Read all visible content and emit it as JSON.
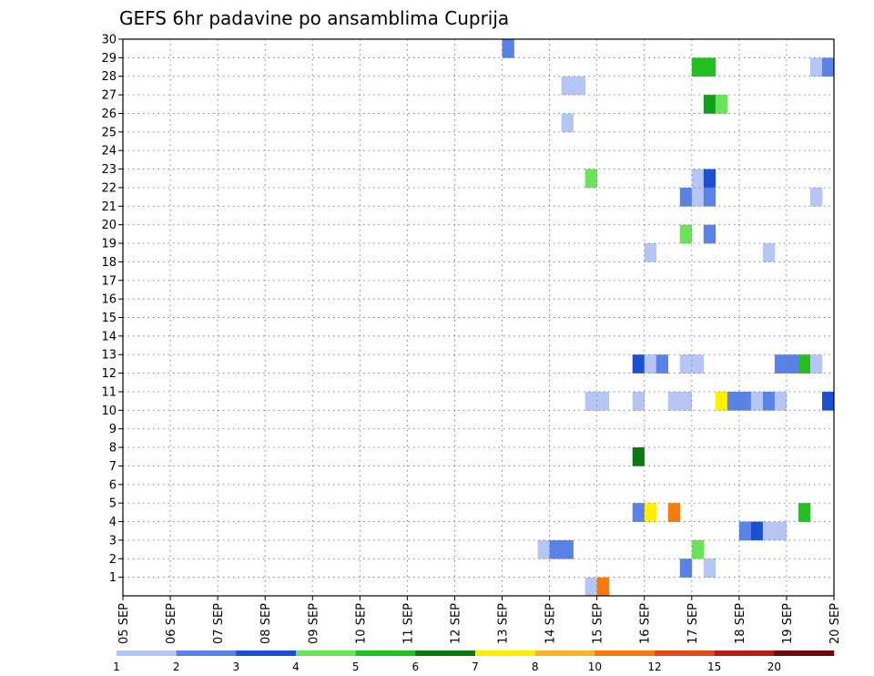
{
  "chart_data": {
    "type": "heatmap",
    "title": "GEFS 6hr padavine po ansamblima Cuprija",
    "xlabel": "",
    "ylabel": "",
    "x_ticks": [
      "05 SEP",
      "06 SEP",
      "07 SEP",
      "08 SEP",
      "09 SEP",
      "10 SEP",
      "11 SEP",
      "12 SEP",
      "13 SEP",
      "14 SEP",
      "15 SEP",
      "16 SEP",
      "17 SEP",
      "18 SEP",
      "19 SEP",
      "20 SEP"
    ],
    "y_ticks": [
      "1",
      "2",
      "3",
      "4",
      "5",
      "6",
      "7",
      "8",
      "9",
      "10",
      "11",
      "12",
      "13",
      "14",
      "15",
      "16",
      "17",
      "18",
      "19",
      "20",
      "21",
      "22",
      "23",
      "24",
      "25",
      "26",
      "27",
      "28",
      "29",
      "30"
    ],
    "grid": true,
    "time_unit": "6-hour step after 05 SEP 00Z",
    "colorbar": {
      "ticks": [
        "1",
        "2",
        "3",
        "4",
        "5",
        "6",
        "7",
        "8",
        "10",
        "12",
        "15",
        "20"
      ],
      "colors": [
        "#b5c6f5",
        "#5a82e6",
        "#1a4fd6",
        "#6ae35a",
        "#22c020",
        "#0a7a10",
        "#fff000",
        "#ffb428",
        "#f57a10",
        "#e34a18",
        "#b41e14",
        "#6e0a0a"
      ]
    },
    "cells": [
      {
        "t": 32,
        "member": 29,
        "color": "#5a82e6"
      },
      {
        "t": 37,
        "member": 27,
        "color": "#b5c6f5"
      },
      {
        "t": 38,
        "member": 27,
        "color": "#b5c6f5"
      },
      {
        "t": 37,
        "member": 25,
        "color": "#b5c6f5"
      },
      {
        "t": 39,
        "member": 22,
        "color": "#6ae35a"
      },
      {
        "t": 48,
        "member": 28,
        "color": "#22c020"
      },
      {
        "t": 49,
        "member": 28,
        "color": "#22c020"
      },
      {
        "t": 49,
        "member": 26,
        "color": "#0fa01a"
      },
      {
        "t": 50,
        "member": 26,
        "color": "#6ae35a"
      },
      {
        "t": 58,
        "member": 28,
        "color": "#b5c6f5"
      },
      {
        "t": 59,
        "member": 28,
        "color": "#5a82e6"
      },
      {
        "t": 48,
        "member": 22,
        "color": "#b5c6f5"
      },
      {
        "t": 49,
        "member": 22,
        "color": "#1a4fd6"
      },
      {
        "t": 47,
        "member": 21,
        "color": "#5a82e6"
      },
      {
        "t": 48,
        "member": 21,
        "color": "#b5c6f5"
      },
      {
        "t": 49,
        "member": 21,
        "color": "#5a82e6"
      },
      {
        "t": 58,
        "member": 21,
        "color": "#b5c6f5"
      },
      {
        "t": 47,
        "member": 19,
        "color": "#6ae35a"
      },
      {
        "t": 49,
        "member": 19,
        "color": "#5a82e6"
      },
      {
        "t": 44,
        "member": 18,
        "color": "#b5c6f5"
      },
      {
        "t": 54,
        "member": 18,
        "color": "#b5c6f5"
      },
      {
        "t": 43,
        "member": 12,
        "color": "#1a4fd6"
      },
      {
        "t": 44,
        "member": 12,
        "color": "#b5c6f5"
      },
      {
        "t": 45,
        "member": 12,
        "color": "#5a82e6"
      },
      {
        "t": 47,
        "member": 12,
        "color": "#b5c6f5"
      },
      {
        "t": 48,
        "member": 12,
        "color": "#b5c6f5"
      },
      {
        "t": 55,
        "member": 12,
        "color": "#5a82e6"
      },
      {
        "t": 56,
        "member": 12,
        "color": "#5a82e6"
      },
      {
        "t": 57,
        "member": 12,
        "color": "#22c020"
      },
      {
        "t": 58,
        "member": 12,
        "color": "#b5c6f5"
      },
      {
        "t": 39,
        "member": 10,
        "color": "#b5c6f5"
      },
      {
        "t": 40,
        "member": 10,
        "color": "#b5c6f5"
      },
      {
        "t": 43,
        "member": 10,
        "color": "#b5c6f5"
      },
      {
        "t": 46,
        "member": 10,
        "color": "#b5c6f5"
      },
      {
        "t": 47,
        "member": 10,
        "color": "#b5c6f5"
      },
      {
        "t": 50,
        "member": 10,
        "color": "#fff000"
      },
      {
        "t": 51,
        "member": 10,
        "color": "#5a82e6"
      },
      {
        "t": 52,
        "member": 10,
        "color": "#5a82e6"
      },
      {
        "t": 53,
        "member": 10,
        "color": "#b5c6f5"
      },
      {
        "t": 54,
        "member": 10,
        "color": "#5a82e6"
      },
      {
        "t": 55,
        "member": 10,
        "color": "#b5c6f5"
      },
      {
        "t": 59,
        "member": 10,
        "color": "#1a4fd6"
      },
      {
        "t": 43,
        "member": 7,
        "color": "#0a7a10"
      },
      {
        "t": 43,
        "member": 4,
        "color": "#5a82e6"
      },
      {
        "t": 44,
        "member": 4,
        "color": "#fff000"
      },
      {
        "t": 46,
        "member": 4,
        "color": "#f57a10"
      },
      {
        "t": 57,
        "member": 4,
        "color": "#22c020"
      },
      {
        "t": 52,
        "member": 3,
        "color": "#5a82e6"
      },
      {
        "t": 53,
        "member": 3,
        "color": "#1a4fd6"
      },
      {
        "t": 54,
        "member": 3,
        "color": "#b5c6f5"
      },
      {
        "t": 55,
        "member": 3,
        "color": "#b5c6f5"
      },
      {
        "t": 35,
        "member": 2,
        "color": "#b5c6f5"
      },
      {
        "t": 36,
        "member": 2,
        "color": "#5a82e6"
      },
      {
        "t": 37,
        "member": 2,
        "color": "#5a82e6"
      },
      {
        "t": 48,
        "member": 2,
        "color": "#6ae35a"
      },
      {
        "t": 47,
        "member": 1,
        "color": "#5a82e6"
      },
      {
        "t": 49,
        "member": 1,
        "color": "#b5c6f5"
      },
      {
        "t": 39,
        "member": 0,
        "color": "#b5c6f5"
      },
      {
        "t": 40,
        "member": 0,
        "color": "#f57a10"
      }
    ]
  }
}
